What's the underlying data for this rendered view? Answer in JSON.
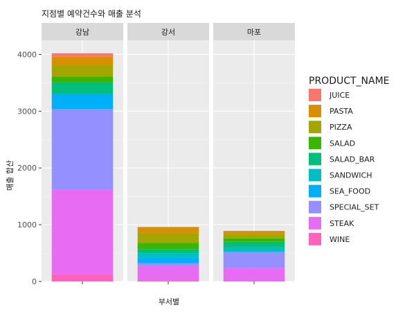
{
  "chart_data": {
    "type": "bar",
    "stacked": true,
    "faceted": true,
    "title": "지점별 예약건수와 매출 분석",
    "xlabel": "부서별",
    "ylabel": "매출 합산",
    "ylim": [
      0,
      4250
    ],
    "yticks": [
      0,
      1000,
      2000,
      3000,
      4000
    ],
    "grid": true,
    "legend_title": "PRODUCT_NAME",
    "legend_position": "right",
    "facets": [
      "강남",
      "강서",
      "마포"
    ],
    "series": [
      {
        "name": "JUICE",
        "color": "#F8766D",
        "values": [
          60,
          0,
          0
        ]
      },
      {
        "name": "PASTA",
        "color": "#D89000",
        "values": [
          150,
          110,
          50
        ]
      },
      {
        "name": "PIZZA",
        "color": "#A3A500",
        "values": [
          200,
          170,
          80
        ]
      },
      {
        "name": "SALAD",
        "color": "#39B600",
        "values": [
          100,
          110,
          60
        ]
      },
      {
        "name": "SALAD_BAR",
        "color": "#00BF7D",
        "values": [
          200,
          70,
          100
        ]
      },
      {
        "name": "SANDWICH",
        "color": "#00BFC4",
        "values": [
          0,
          80,
          80
        ]
      },
      {
        "name": "SEA_FOOD",
        "color": "#00B0F6",
        "values": [
          270,
          100,
          0
        ]
      },
      {
        "name": "SPECIAL_SET",
        "color": "#9590FF",
        "values": [
          1420,
          40,
          280
        ]
      },
      {
        "name": "STEAK",
        "color": "#E76BF3",
        "values": [
          1490,
          260,
          240
        ]
      },
      {
        "name": "WINE",
        "color": "#FF62BC",
        "values": [
          130,
          20,
          0
        ]
      }
    ]
  },
  "colors": {
    "panel_bg": "#EBEBEB",
    "strip_bg": "#D9D9D9",
    "grid_major": "#FFFFFF",
    "grid_minor": "#F5F5F5",
    "tick": "#333333"
  }
}
